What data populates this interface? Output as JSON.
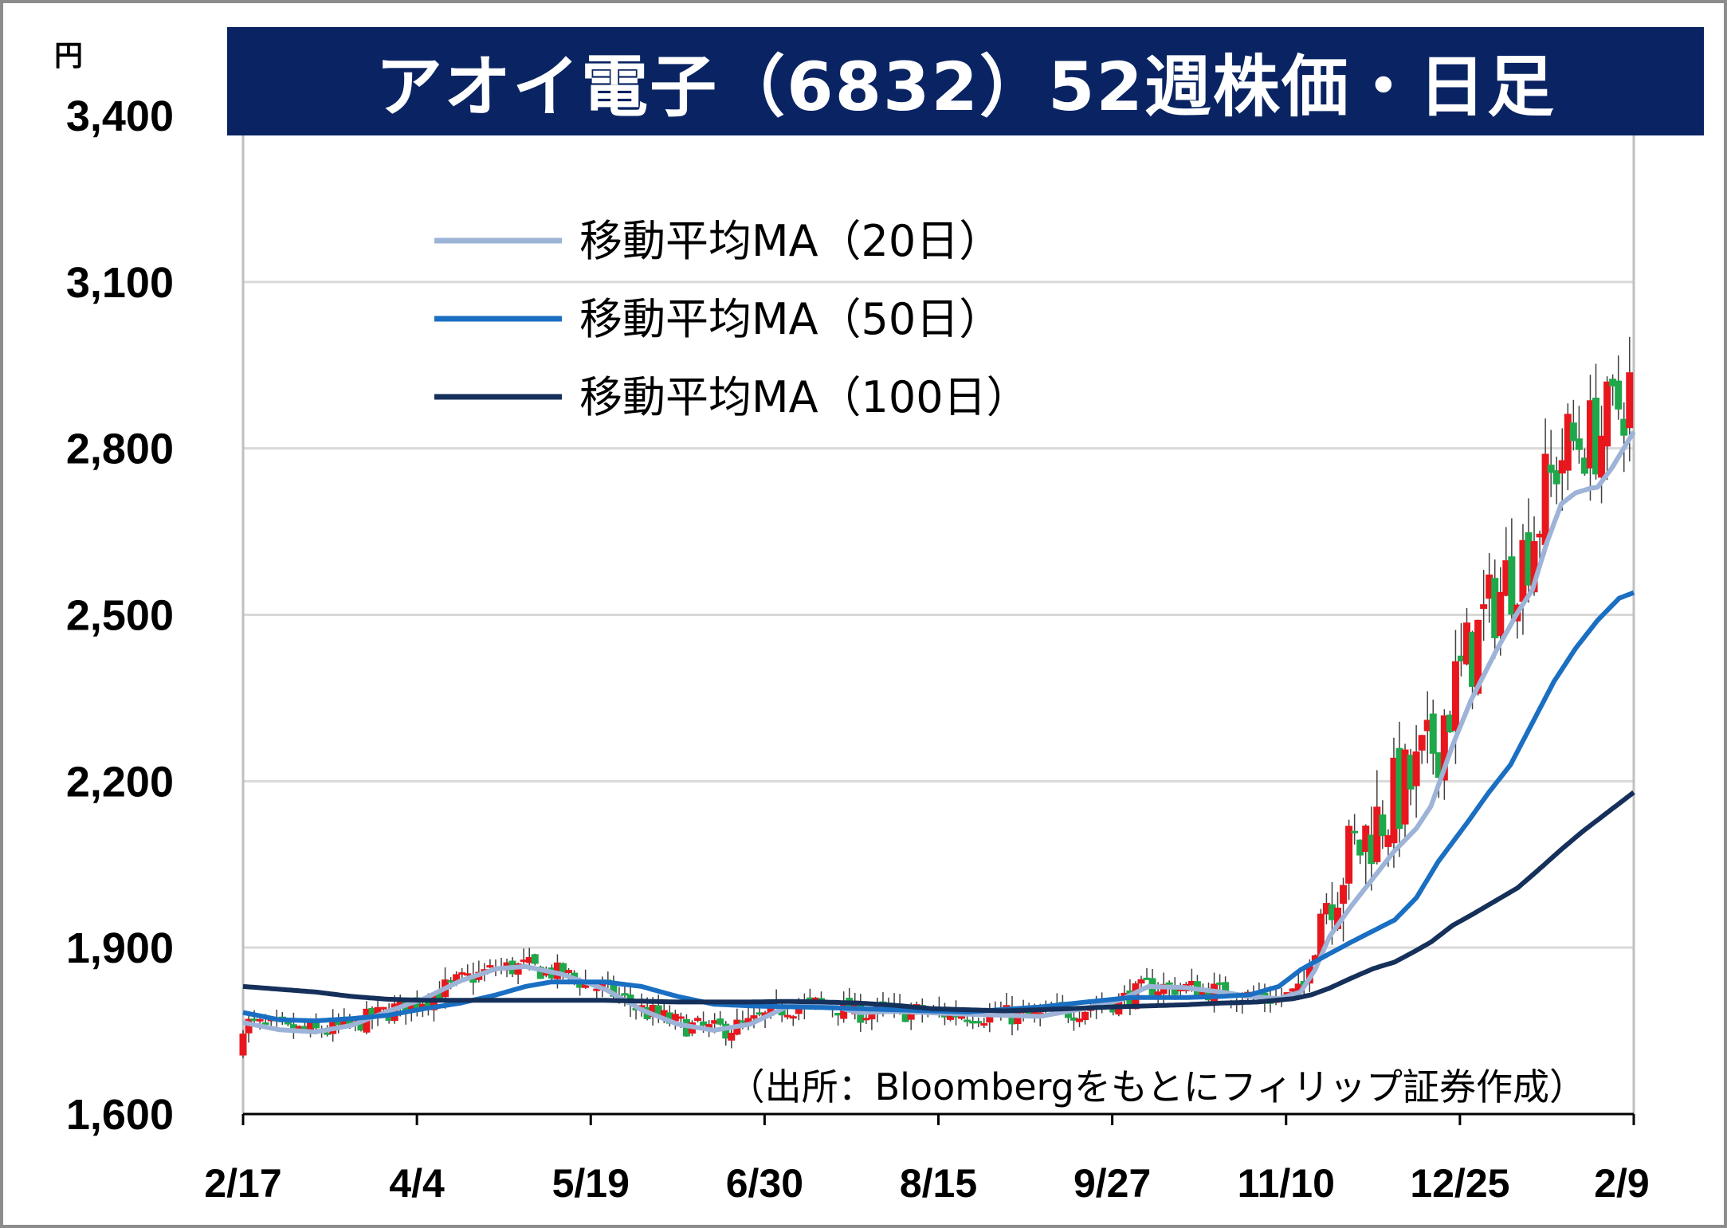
{
  "title": "アオイ電子（6832）52週株価・日足",
  "colors": {
    "title_bg": "#0a2463",
    "up": "#e8171d",
    "down": "#1fa84a",
    "ma20": "#9db3d7",
    "ma50": "#1a6fc2",
    "ma100": "#15305a",
    "grid": "#d9d9d9"
  },
  "source_note": "（出所：Bloombergをもとにフィリップ証券作成）",
  "chart_data": {
    "type": "candlestick",
    "y_unit": "円",
    "ylim": [
      1600,
      3400
    ],
    "y_ticks": [
      1600,
      1900,
      2200,
      2500,
      2800,
      3100,
      3400
    ],
    "y_tick_labels": [
      "1,600",
      "1,900",
      "2,200",
      "2,500",
      "2,800",
      "3,100",
      "3,400"
    ],
    "x_tick_labels": [
      "2/17",
      "4/4",
      "5/19",
      "6/30",
      "8/15",
      "9/27",
      "11/10",
      "12/25",
      "2/9"
    ],
    "grid": true,
    "legend_position": "top-left",
    "series": [
      {
        "name": "移動平均MA（20日）",
        "color": "#9db3d7",
        "points": [
          [
            0,
            1765
          ],
          [
            10,
            1752
          ],
          [
            20,
            1748
          ],
          [
            30,
            1760
          ],
          [
            40,
            1785
          ],
          [
            50,
            1808
          ],
          [
            60,
            1840
          ],
          [
            70,
            1862
          ],
          [
            78,
            1866
          ],
          [
            88,
            1852
          ],
          [
            100,
            1825
          ],
          [
            110,
            1788
          ],
          [
            120,
            1762
          ],
          [
            130,
            1751
          ],
          [
            140,
            1762
          ],
          [
            150,
            1793
          ],
          [
            160,
            1799
          ],
          [
            170,
            1783
          ],
          [
            180,
            1785
          ],
          [
            200,
            1780
          ],
          [
            220,
            1776
          ],
          [
            232,
            1790
          ],
          [
            242,
            1805
          ],
          [
            250,
            1830
          ],
          [
            260,
            1828
          ],
          [
            270,
            1820
          ],
          [
            278,
            1812
          ],
          [
            286,
            1808
          ],
          [
            292,
            1820
          ],
          [
            296,
            1860
          ],
          [
            300,
            1920
          ],
          [
            306,
            1975
          ],
          [
            312,
            2025
          ],
          [
            318,
            2075
          ],
          [
            324,
            2115
          ],
          [
            328,
            2155
          ],
          [
            334,
            2265
          ],
          [
            339,
            2345
          ],
          [
            346,
            2435
          ],
          [
            352,
            2505
          ],
          [
            356,
            2545
          ],
          [
            360,
            2630
          ],
          [
            364,
            2700
          ],
          [
            368,
            2720
          ],
          [
            372,
            2728
          ],
          [
            374,
            2730
          ],
          [
            378,
            2765
          ],
          [
            384,
            2830
          ]
        ]
      },
      {
        "name": "移動平均MA（50日）",
        "color": "#1a6fc2",
        "points": [
          [
            0,
            1783
          ],
          [
            10,
            1770
          ],
          [
            20,
            1768
          ],
          [
            30,
            1772
          ],
          [
            40,
            1778
          ],
          [
            50,
            1790
          ],
          [
            60,
            1800
          ],
          [
            70,
            1815
          ],
          [
            78,
            1830
          ],
          [
            85,
            1838
          ],
          [
            95,
            1838
          ],
          [
            100,
            1838
          ],
          [
            110,
            1830
          ],
          [
            120,
            1812
          ],
          [
            130,
            1798
          ],
          [
            140,
            1795
          ],
          [
            160,
            1792
          ],
          [
            180,
            1788
          ],
          [
            200,
            1784
          ],
          [
            220,
            1793
          ],
          [
            230,
            1800
          ],
          [
            245,
            1810
          ],
          [
            260,
            1810
          ],
          [
            270,
            1812
          ],
          [
            278,
            1815
          ],
          [
            286,
            1830
          ],
          [
            292,
            1860
          ],
          [
            298,
            1882
          ],
          [
            306,
            1910
          ],
          [
            312,
            1930
          ],
          [
            318,
            1950
          ],
          [
            324,
            1990
          ],
          [
            330,
            2055
          ],
          [
            338,
            2125
          ],
          [
            344,
            2180
          ],
          [
            350,
            2230
          ],
          [
            356,
            2305
          ],
          [
            362,
            2380
          ],
          [
            368,
            2440
          ],
          [
            374,
            2490
          ],
          [
            380,
            2530
          ],
          [
            384,
            2540
          ]
        ]
      },
      {
        "name": "移動平均MA（100日）",
        "color": "#15305a",
        "points": [
          [
            0,
            1830
          ],
          [
            10,
            1825
          ],
          [
            20,
            1820
          ],
          [
            30,
            1812
          ],
          [
            40,
            1807
          ],
          [
            50,
            1805
          ],
          [
            60,
            1805
          ],
          [
            70,
            1805
          ],
          [
            80,
            1805
          ],
          [
            100,
            1805
          ],
          [
            120,
            1802
          ],
          [
            140,
            1802
          ],
          [
            150,
            1803
          ],
          [
            160,
            1802
          ],
          [
            170,
            1800
          ],
          [
            180,
            1796
          ],
          [
            190,
            1790
          ],
          [
            200,
            1788
          ],
          [
            210,
            1786
          ],
          [
            220,
            1788
          ],
          [
            240,
            1793
          ],
          [
            260,
            1797
          ],
          [
            270,
            1800
          ],
          [
            280,
            1802
          ],
          [
            290,
            1808
          ],
          [
            295,
            1815
          ],
          [
            300,
            1827
          ],
          [
            306,
            1845
          ],
          [
            312,
            1862
          ],
          [
            318,
            1874
          ],
          [
            324,
            1895
          ],
          [
            328,
            1910
          ],
          [
            334,
            1940
          ],
          [
            340,
            1962
          ],
          [
            346,
            1985
          ],
          [
            352,
            2008
          ],
          [
            358,
            2042
          ],
          [
            364,
            2077
          ],
          [
            370,
            2110
          ],
          [
            376,
            2140
          ],
          [
            384,
            2180
          ]
        ]
      }
    ]
  },
  "legend": {
    "items": [
      {
        "label": "移動平均MA（20日）",
        "color": "#9db3d7"
      },
      {
        "label": "移動平均MA（50日）",
        "color": "#1a6fc2"
      },
      {
        "label": "移動平均MA（100日）",
        "color": "#15305a"
      }
    ]
  }
}
